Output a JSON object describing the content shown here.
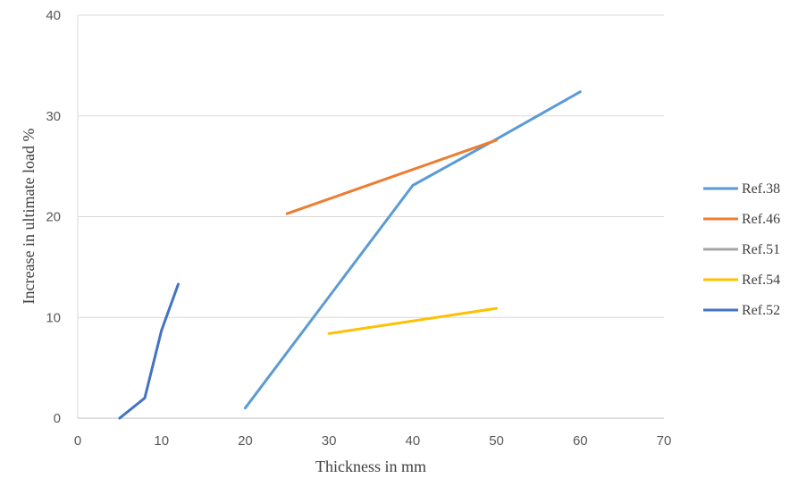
{
  "chart_data": {
    "type": "line",
    "title": "",
    "xlabel": "Thickness  in mm",
    "ylabel": "Increase  in ultimate load %",
    "xlim": [
      0,
      70
    ],
    "ylim": [
      0,
      40
    ],
    "xticks": [
      0,
      10,
      20,
      30,
      40,
      50,
      60,
      70
    ],
    "yticks": [
      0,
      10,
      20,
      30,
      40
    ],
    "grid": "horizontal",
    "legend_position": "right",
    "series": [
      {
        "name": "Ref.38",
        "color": "#5B9BD5",
        "x": [
          20,
          40,
          50,
          60
        ],
        "y": [
          1,
          23.1,
          27.7,
          32.4
        ]
      },
      {
        "name": "Ref.46",
        "color": "#ED7D31",
        "x": [
          25,
          50
        ],
        "y": [
          20.3,
          27.6
        ]
      },
      {
        "name": "Ref.51",
        "color": "#A5A5A5",
        "x": [],
        "y": []
      },
      {
        "name": "Ref.54",
        "color": "#FFC000",
        "x": [
          30,
          50
        ],
        "y": [
          8.4,
          10.9
        ]
      },
      {
        "name": "Ref.52",
        "color": "#4472C4",
        "x": [
          5,
          8,
          10,
          12
        ],
        "y": [
          0,
          2,
          8.7,
          13.3
        ]
      }
    ]
  }
}
